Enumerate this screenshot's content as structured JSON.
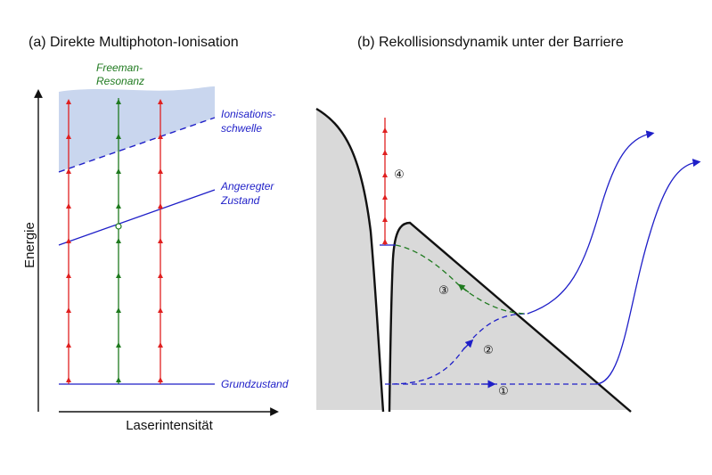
{
  "panel_a": {
    "title": "(a) Direkte Multiphoton-Ionisation",
    "x_axis_label": "Laserintensität",
    "y_axis_label": "Energie",
    "freeman_label_line1": "Freeman-",
    "freeman_label_line2": "Resonanz",
    "ionisation_label_line1": "Ionisations-",
    "ionisation_label_line2": "schwelle",
    "excited_label_line1": "Angeregter",
    "excited_label_line2": "Zustand",
    "ground_label": "Grundzustand"
  },
  "panel_b": {
    "title": "(b) Rekollisionsdynamik unter der Barriere",
    "path_labels": [
      "①",
      "②",
      "③",
      "④"
    ]
  },
  "colors": {
    "photon_red": "#e02020",
    "photon_green": "#1f7a1f",
    "state_blue": "#1f1fc8",
    "continuum_fill": "#c9d6ee",
    "potential_fill": "#d9d9d9"
  }
}
